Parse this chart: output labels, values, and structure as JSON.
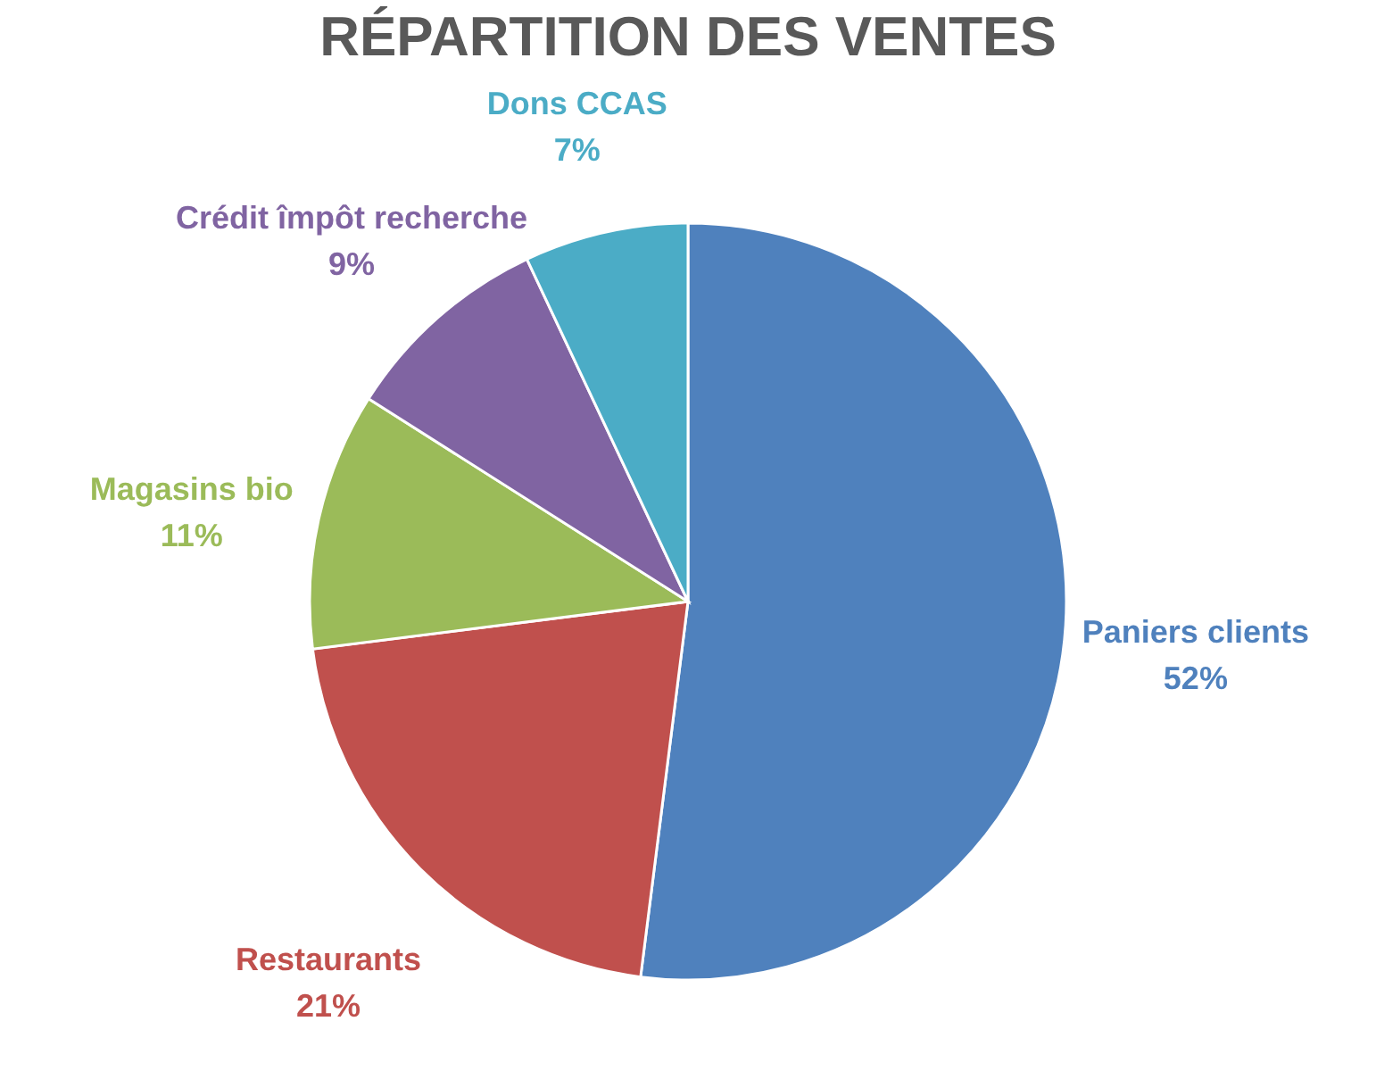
{
  "chart_data": {
    "type": "pie",
    "title": "RÉPARTITION DES VENTES",
    "categories": [
      "Paniers clients",
      "Restaurants",
      "Magasins bio",
      "Crédit împôt recherche",
      "Dons CCAS"
    ],
    "values": [
      52,
      21,
      11,
      9,
      7
    ],
    "colors": [
      "#4f81bd",
      "#c0504d",
      "#9bbb59",
      "#8064a2",
      "#4bacc6"
    ],
    "value_labels": [
      "52%",
      "21%",
      "11%",
      "9%",
      "7%"
    ],
    "legend": false
  }
}
